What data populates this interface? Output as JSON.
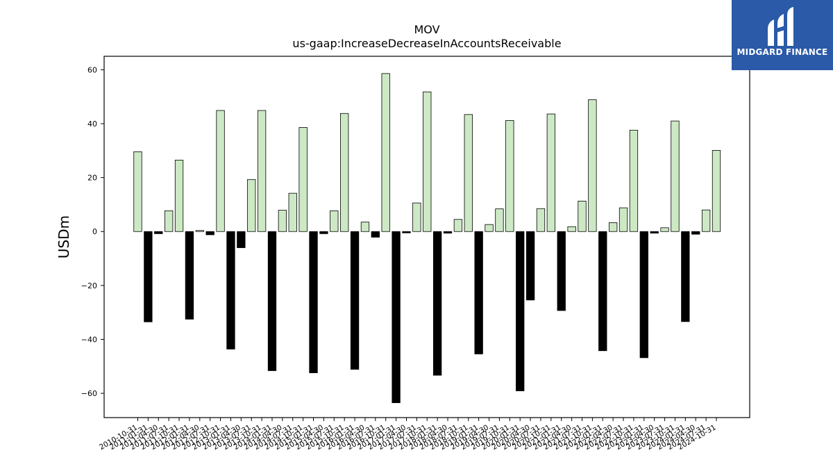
{
  "brand": {
    "name": "MIDGARD FINANCE",
    "icon": "midgard-logo-icon",
    "color": "#2a5aa8"
  },
  "chart_data": {
    "type": "bar",
    "title": "MOV",
    "subtitle": "us-gaap:IncreaseDecreaseInAccountsReceivable",
    "xlabel": "",
    "ylabel": "USDm",
    "ylim": [
      -69,
      65
    ],
    "yticks": [
      -60,
      -40,
      -20,
      0,
      20,
      40,
      60
    ],
    "grid": false,
    "positive_color": "#cde8c4",
    "negative_color": "#000000",
    "categories": [
      "2010-10-31",
      "2011-01-31",
      "2011-04-30",
      "2011-07-31",
      "2011-10-31",
      "2012-01-31",
      "2012-04-30",
      "2012-07-31",
      "2012-10-31",
      "2013-01-31",
      "2013-04-30",
      "2013-07-31",
      "2013-10-31",
      "2014-01-31",
      "2014-04-30",
      "2014-07-31",
      "2014-10-31",
      "2015-01-31",
      "2015-04-30",
      "2015-07-31",
      "2015-10-31",
      "2016-01-31",
      "2016-04-30",
      "2016-07-31",
      "2016-10-31",
      "2017-01-31",
      "2017-04-30",
      "2017-07-31",
      "2017-10-31",
      "2018-01-31",
      "2018-04-30",
      "2018-07-31",
      "2018-10-31",
      "2019-01-31",
      "2019-04-30",
      "2019-07-31",
      "2019-10-31",
      "2020-01-31",
      "2020-04-30",
      "2020-07-31",
      "2020-10-31",
      "2021-01-31",
      "2021-04-30",
      "2021-07-31",
      "2021-10-31",
      "2022-01-31",
      "2022-04-30",
      "2022-07-31",
      "2022-10-31",
      "2023-01-31",
      "2023-04-30",
      "2023-07-31",
      "2023-10-31",
      "2024-01-31",
      "2024-04-30",
      "2024-07-31",
      "2024-10-31"
    ],
    "values": [
      29.6,
      -33.5,
      -0.8,
      7.7,
      26.5,
      -32.5,
      0.4,
      -1.2,
      44.9,
      -43.6,
      -6.0,
      19.3,
      44.9,
      -51.6,
      7.9,
      14.2,
      38.6,
      -52.4,
      -0.8,
      7.7,
      43.8,
      -51.1,
      3.5,
      -2.1,
      58.6,
      -63.5,
      -0.5,
      10.6,
      51.8,
      -53.3,
      -0.6,
      4.5,
      43.4,
      -45.4,
      2.6,
      8.4,
      41.2,
      -59.1,
      -25.4,
      8.5,
      43.6,
      -29.3,
      1.8,
      11.3,
      48.9,
      -44.2,
      3.3,
      8.8,
      37.6,
      -46.8,
      -0.6,
      1.4,
      41.0,
      -33.4,
      -1.0,
      8.0,
      30.1
    ]
  }
}
